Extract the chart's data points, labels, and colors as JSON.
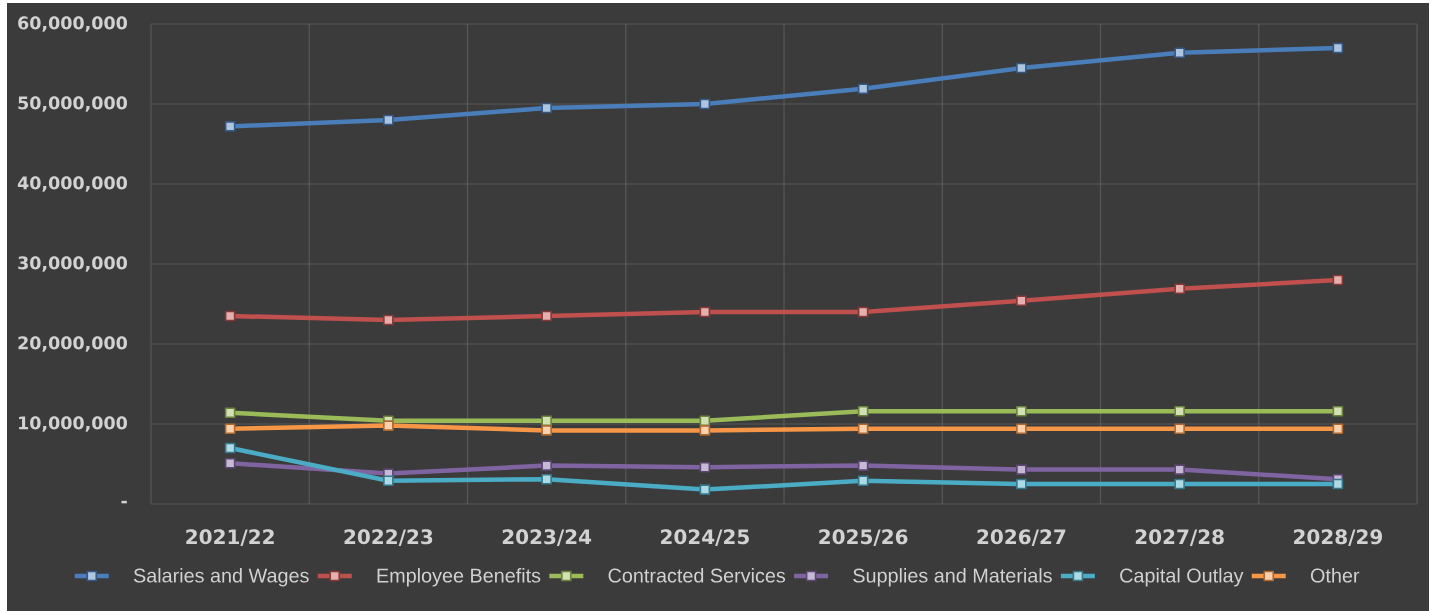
{
  "chart_data": {
    "type": "line",
    "categories": [
      "2021/22",
      "2022/23",
      "2023/24",
      "2024/25",
      "2025/26",
      "2026/27",
      "2027/28",
      "2028/29"
    ],
    "series": [
      {
        "name": "Salaries and Wages",
        "color": "#4a7ebb",
        "values": [
          47200000,
          48000000,
          49500000,
          50000000,
          51900000,
          54500000,
          56400000,
          57000000
        ]
      },
      {
        "name": "Employee Benefits",
        "color": "#c0504d",
        "values": [
          23500000,
          23000000,
          23500000,
          24000000,
          24000000,
          25400000,
          26900000,
          28000000
        ]
      },
      {
        "name": "Contracted Services",
        "color": "#9bbb59",
        "values": [
          11400000,
          10400000,
          10400000,
          10400000,
          11600000,
          11600000,
          11600000,
          11600000
        ]
      },
      {
        "name": "Supplies and Materials",
        "color": "#8064a2",
        "values": [
          5100000,
          3800000,
          4800000,
          4600000,
          4800000,
          4300000,
          4300000,
          3100000
        ]
      },
      {
        "name": "Capital Outlay",
        "color": "#4bacc6",
        "values": [
          7000000,
          2900000,
          3100000,
          1800000,
          2900000,
          2500000,
          2500000,
          2500000
        ]
      },
      {
        "name": "Other",
        "color": "#f79646",
        "values": [
          9400000,
          9800000,
          9200000,
          9200000,
          9400000,
          9400000,
          9400000,
          9400000
        ]
      }
    ],
    "ylim": [
      0,
      60000000
    ],
    "yticks": [
      {
        "value": 0,
        "label": "-"
      },
      {
        "value": 10000000,
        "label": "10,000,000"
      },
      {
        "value": 20000000,
        "label": "20,000,000"
      },
      {
        "value": 30000000,
        "label": "30,000,000"
      },
      {
        "value": 40000000,
        "label": "40,000,000"
      },
      {
        "value": 50000000,
        "label": "50,000,000"
      },
      {
        "value": 60000000,
        "label": "60,000,000"
      }
    ],
    "grid": true,
    "legend": "bottom",
    "marker": "square",
    "line_style": "solid"
  }
}
